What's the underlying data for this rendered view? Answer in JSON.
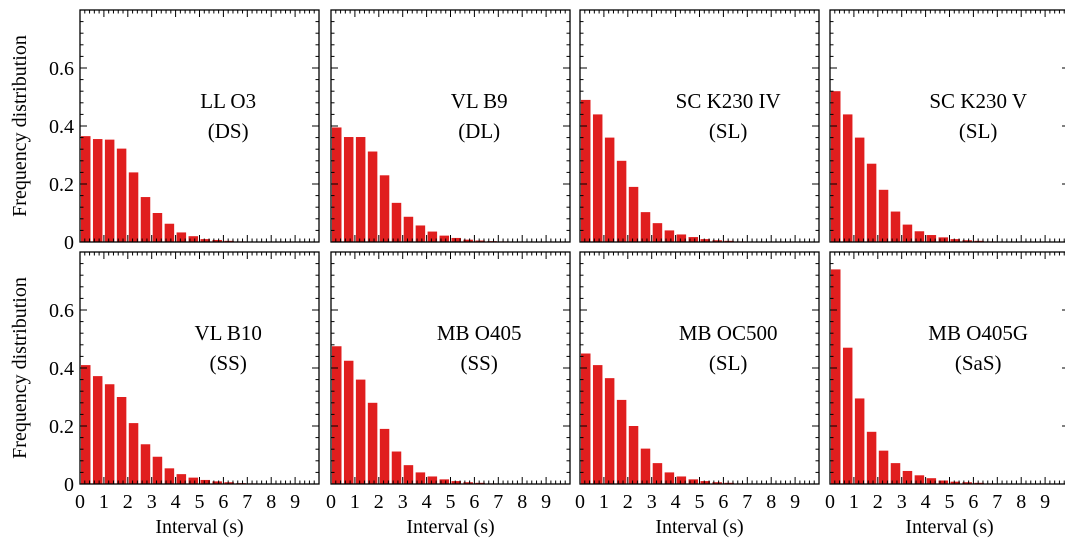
{
  "chart_data": {
    "type": "bar",
    "colors": {
      "bar": "#e01e1e",
      "axis": "#000000",
      "background": "#ffffff"
    },
    "x_ticks": [
      "0",
      "1",
      "2",
      "3",
      "4",
      "5",
      "6",
      "7",
      "8",
      "9"
    ],
    "y_ticks": [
      "0",
      "0.2",
      "0.4",
      "0.6"
    ],
    "xlim": [
      0,
      10
    ],
    "ylim": [
      0,
      0.8
    ],
    "xlabel": "Interval (s)",
    "ylabel": "Frequency distribution",
    "bin_width": 0.5,
    "panels": [
      {
        "title": "LL O3",
        "subtitle": "(DS)",
        "values": [
          0.365,
          0.355,
          0.353,
          0.322,
          0.24,
          0.155,
          0.1,
          0.063,
          0.033,
          0.02,
          0.01,
          0.007,
          0.004,
          0.002,
          0.001,
          0.001,
          0,
          0,
          0,
          0
        ]
      },
      {
        "title": "VL B9",
        "subtitle": "(DL)",
        "values": [
          0.395,
          0.362,
          0.362,
          0.312,
          0.23,
          0.135,
          0.087,
          0.057,
          0.036,
          0.022,
          0.014,
          0.008,
          0.005,
          0.003,
          0.002,
          0.001,
          0,
          0,
          0,
          0
        ]
      },
      {
        "title": "SC K230 IV",
        "subtitle": "(SL)",
        "values": [
          0.49,
          0.44,
          0.36,
          0.28,
          0.19,
          0.103,
          0.065,
          0.04,
          0.026,
          0.017,
          0.01,
          0.006,
          0.004,
          0.002,
          0.001,
          0.001,
          0,
          0,
          0,
          0
        ]
      },
      {
        "title": "SC K230 V",
        "subtitle": "(SL)",
        "values": [
          0.52,
          0.44,
          0.36,
          0.27,
          0.18,
          0.105,
          0.06,
          0.037,
          0.024,
          0.016,
          0.01,
          0.006,
          0.004,
          0.002,
          0.001,
          0.001,
          0,
          0,
          0,
          0
        ]
      },
      {
        "title": "VL B10",
        "subtitle": "(SS)",
        "values": [
          0.41,
          0.372,
          0.344,
          0.3,
          0.21,
          0.137,
          0.094,
          0.054,
          0.034,
          0.022,
          0.014,
          0.009,
          0.006,
          0.003,
          0.002,
          0.001,
          0,
          0,
          0,
          0
        ]
      },
      {
        "title": "MB O405",
        "subtitle": "(SS)",
        "values": [
          0.475,
          0.425,
          0.36,
          0.28,
          0.19,
          0.112,
          0.065,
          0.04,
          0.026,
          0.016,
          0.01,
          0.006,
          0.004,
          0.002,
          0.001,
          0.001,
          0,
          0,
          0,
          0
        ]
      },
      {
        "title": "MB OC500",
        "subtitle": "(SL)",
        "values": [
          0.45,
          0.41,
          0.365,
          0.29,
          0.2,
          0.122,
          0.072,
          0.04,
          0.026,
          0.016,
          0.01,
          0.006,
          0.004,
          0.002,
          0.001,
          0.001,
          0,
          0,
          0,
          0
        ]
      },
      {
        "title": "MB O405G",
        "subtitle": "(SaS)",
        "values": [
          0.74,
          0.47,
          0.295,
          0.18,
          0.115,
          0.072,
          0.045,
          0.03,
          0.02,
          0.012,
          0.008,
          0.006,
          0.004,
          0.002,
          0.001,
          0.001,
          0,
          0,
          0,
          0
        ]
      }
    ]
  }
}
